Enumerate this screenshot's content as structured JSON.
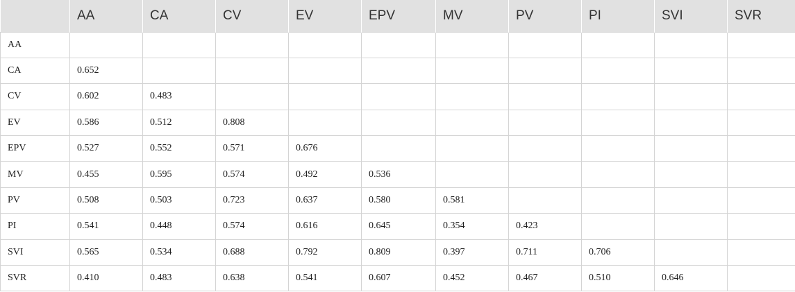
{
  "table": {
    "columns": [
      "",
      "AA",
      "CA",
      "CV",
      "EV",
      "EPV",
      "MV",
      "PV",
      "PI",
      "SVI",
      "SVR"
    ],
    "rows": [
      {
        "label": "AA",
        "cells": [
          "",
          "",
          "",
          "",
          "",
          "",
          "",
          "",
          "",
          ""
        ]
      },
      {
        "label": "CA",
        "cells": [
          "0.652",
          "",
          "",
          "",
          "",
          "",
          "",
          "",
          "",
          ""
        ]
      },
      {
        "label": "CV",
        "cells": [
          "0.602",
          "0.483",
          "",
          "",
          "",
          "",
          "",
          "",
          "",
          ""
        ]
      },
      {
        "label": "EV",
        "cells": [
          "0.586",
          "0.512",
          "0.808",
          "",
          "",
          "",
          "",
          "",
          "",
          ""
        ]
      },
      {
        "label": "EPV",
        "cells": [
          "0.527",
          "0.552",
          "0.571",
          "0.676",
          "",
          "",
          "",
          "",
          "",
          ""
        ]
      },
      {
        "label": "MV",
        "cells": [
          "0.455",
          "0.595",
          "0.574",
          "0.492",
          "0.536",
          "",
          "",
          "",
          "",
          ""
        ]
      },
      {
        "label": "PV",
        "cells": [
          "0.508",
          "0.503",
          "0.723",
          "0.637",
          "0.580",
          "0.581",
          "",
          "",
          "",
          ""
        ]
      },
      {
        "label": "PI",
        "cells": [
          "0.541",
          "0.448",
          "0.574",
          "0.616",
          "0.645",
          "0.354",
          "0.423",
          "",
          "",
          ""
        ]
      },
      {
        "label": "SVI",
        "cells": [
          "0.565",
          "0.534",
          "0.688",
          "0.792",
          "0.809",
          "0.397",
          "0.711",
          "0.706",
          "",
          ""
        ]
      },
      {
        "label": "SVR",
        "cells": [
          "0.410",
          "0.483",
          "0.638",
          "0.541",
          "0.607",
          "0.452",
          "0.467",
          "0.510",
          "0.646",
          ""
        ]
      }
    ]
  },
  "colors": {
    "header_background": "#e1e1e1",
    "grid_line": "#d4d4d4",
    "text": "#222222"
  }
}
